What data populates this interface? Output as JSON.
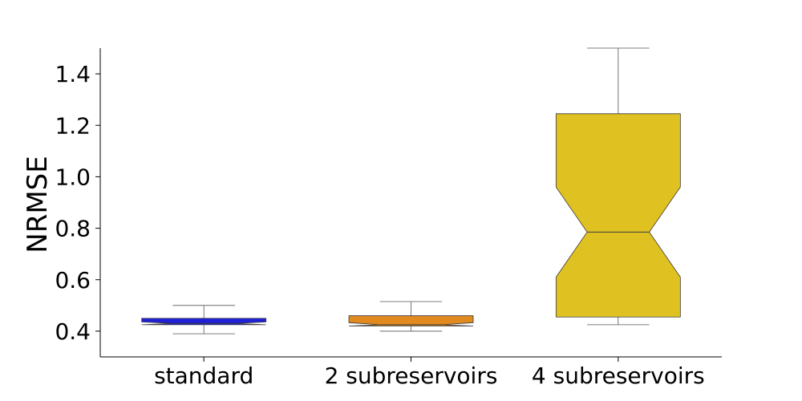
{
  "chart_data": {
    "type": "boxplot",
    "title": "",
    "xlabel": "",
    "ylabel": "NRMSE",
    "ylim": [
      0.3,
      1.5
    ],
    "yticks": [
      0.4,
      0.6,
      0.8,
      1.0,
      1.2,
      1.4
    ],
    "ytick_labels": [
      "0.4",
      "0.6",
      "0.8",
      "1.0",
      "1.2",
      "1.4"
    ],
    "notched": true,
    "categories": [
      "standard",
      "2 subreservoirs",
      "4 subreservoirs"
    ],
    "boxes": [
      {
        "name": "standard",
        "color": "#1f1fd9",
        "whisker_low": 0.39,
        "q1": 0.425,
        "median": 0.43,
        "q3": 0.45,
        "whisker_high": 0.5,
        "notch_low": 0.424,
        "notch_high": 0.436
      },
      {
        "name": "2 subreservoirs",
        "color": "#e08a20",
        "whisker_low": 0.4,
        "q1": 0.42,
        "median": 0.425,
        "q3": 0.46,
        "whisker_high": 0.515,
        "notch_low": 0.418,
        "notch_high": 0.433
      },
      {
        "name": "4 subreservoirs",
        "color": "#dfc222",
        "whisker_low": 0.425,
        "q1": 0.455,
        "median": 0.785,
        "q3": 1.245,
        "whisker_high": 1.5,
        "notch_low": 0.61,
        "notch_high": 0.96
      }
    ]
  }
}
